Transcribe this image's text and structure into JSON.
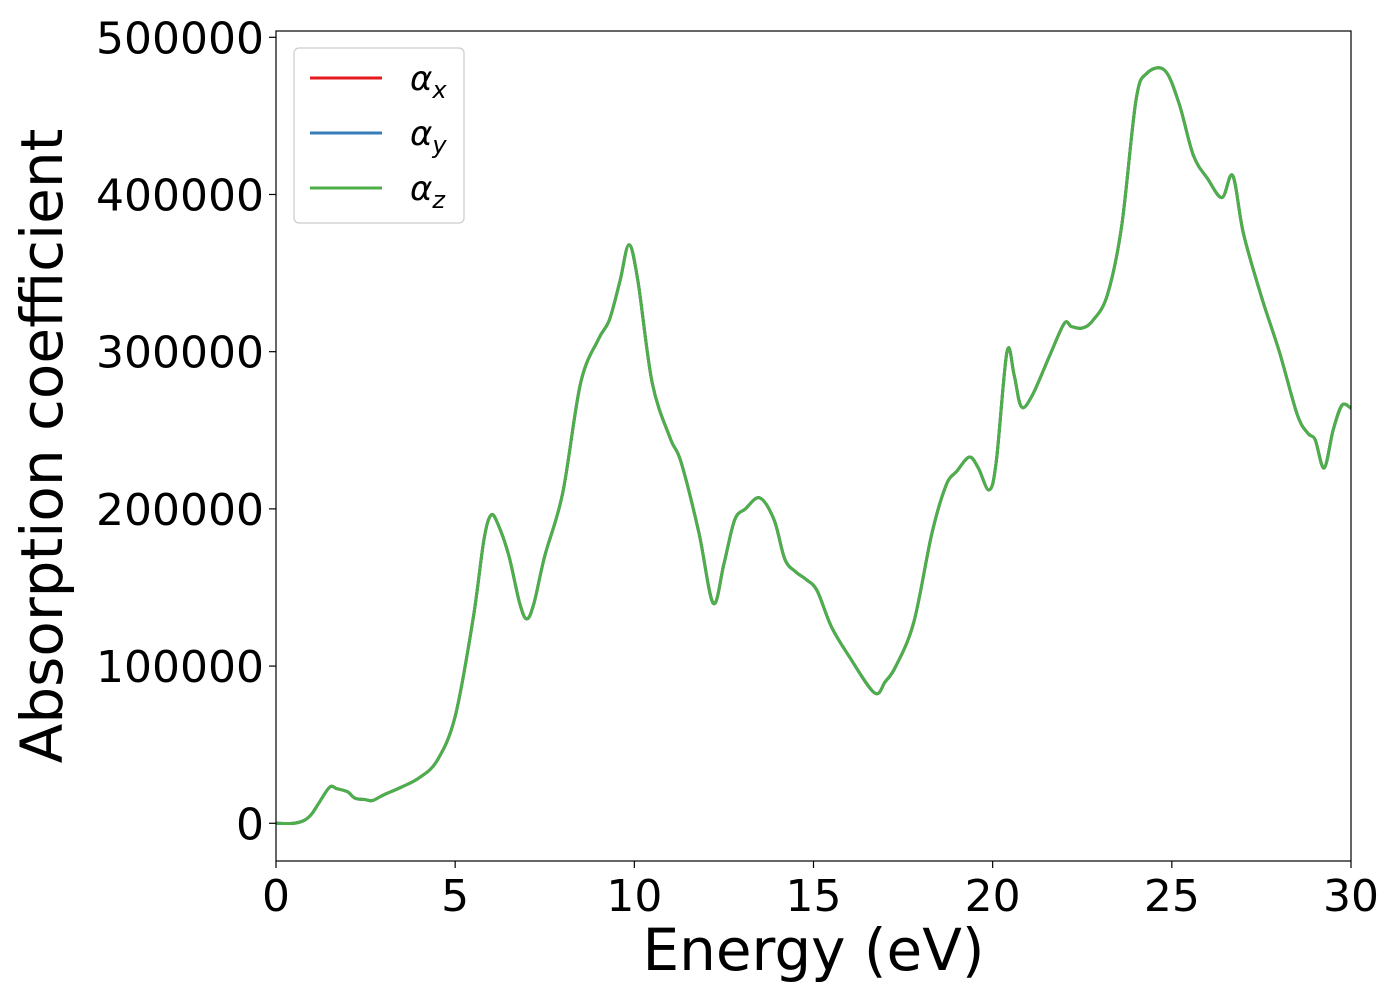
{
  "chart_data": {
    "type": "line",
    "title": "",
    "xlabel": "Energy (eV)",
    "ylabel": "Absorption coefficient",
    "xlim": [
      0,
      30
    ],
    "ylim": [
      -24000,
      504000
    ],
    "x_ticks": [
      0,
      5,
      10,
      15,
      20,
      25,
      30
    ],
    "x_tick_labels": [
      "0",
      "5",
      "10",
      "15",
      "20",
      "25",
      "30"
    ],
    "y_ticks": [
      0,
      100000,
      200000,
      300000,
      400000,
      500000
    ],
    "y_tick_labels": [
      "0",
      "100000",
      "200000",
      "300000",
      "400000",
      "500000"
    ],
    "grid": false,
    "legend_position": "top-left",
    "x": [
      0,
      0.5,
      0.8,
      1.0,
      1.2,
      1.5,
      1.7,
      2.0,
      2.2,
      2.5,
      2.7,
      3.0,
      3.5,
      4.0,
      4.5,
      5.0,
      5.5,
      5.8,
      6.0,
      6.2,
      6.5,
      6.8,
      7.0,
      7.2,
      7.5,
      8.0,
      8.5,
      9.0,
      9.3,
      9.6,
      9.85,
      10.1,
      10.5,
      11.0,
      11.3,
      11.8,
      12.2,
      12.5,
      12.8,
      13.1,
      13.5,
      13.9,
      14.2,
      14.5,
      14.8,
      15.1,
      15.5,
      16.0,
      16.7,
      17.0,
      17.3,
      17.8,
      18.3,
      18.7,
      19.0,
      19.35,
      19.6,
      19.9,
      20.1,
      20.4,
      20.6,
      20.8,
      21.1,
      21.6,
      22.0,
      22.2,
      22.5,
      22.8,
      23.2,
      23.6,
      24.0,
      24.3,
      24.8,
      25.2,
      25.6,
      26.0,
      26.4,
      26.7,
      27.0,
      27.5,
      28.0,
      28.5,
      28.8,
      29.0,
      29.25,
      29.5,
      29.75,
      30.0
    ],
    "series": [
      {
        "name": "α_x",
        "name_main": "α",
        "name_sub": "x",
        "color": "#e41a1c",
        "values": [
          0,
          0,
          2000,
          6000,
          13000,
          23000,
          22000,
          20000,
          16000,
          15000,
          14500,
          18000,
          23000,
          29000,
          40000,
          68000,
          130000,
          180000,
          196000,
          190000,
          170000,
          140000,
          130000,
          140000,
          170000,
          210000,
          280000,
          308000,
          320000,
          345000,
          368000,
          345000,
          280000,
          245000,
          230000,
          185000,
          140000,
          165000,
          193000,
          200000,
          207000,
          193000,
          168000,
          160000,
          155000,
          148000,
          125000,
          106000,
          83000,
          90000,
          100000,
          128000,
          184000,
          215000,
          224000,
          233000,
          226000,
          212000,
          230000,
          300000,
          285000,
          265000,
          272000,
          298000,
          318000,
          316000,
          315000,
          320000,
          336000,
          380000,
          460000,
          477000,
          479000,
          458000,
          425000,
          410000,
          398000,
          412000,
          375000,
          335000,
          300000,
          260000,
          248000,
          244000,
          226000,
          250000,
          266000,
          264000
        ]
      },
      {
        "name": "α_y",
        "name_main": "α",
        "name_sub": "y",
        "color": "#377eb8",
        "values": [
          0,
          0,
          2000,
          6000,
          13000,
          23000,
          22000,
          20000,
          16000,
          15000,
          14500,
          18000,
          23000,
          29000,
          40000,
          68000,
          130000,
          180000,
          196000,
          190000,
          170000,
          140000,
          130000,
          140000,
          170000,
          210000,
          280000,
          308000,
          320000,
          345000,
          368000,
          345000,
          280000,
          245000,
          230000,
          185000,
          140000,
          165000,
          193000,
          200000,
          207000,
          193000,
          168000,
          160000,
          155000,
          148000,
          125000,
          106000,
          83000,
          90000,
          100000,
          128000,
          184000,
          215000,
          224000,
          233000,
          226000,
          212000,
          230000,
          300000,
          285000,
          265000,
          272000,
          298000,
          318000,
          316000,
          315000,
          320000,
          336000,
          380000,
          460000,
          477000,
          479000,
          458000,
          425000,
          410000,
          398000,
          412000,
          375000,
          335000,
          300000,
          260000,
          248000,
          244000,
          226000,
          250000,
          266000,
          264000
        ]
      },
      {
        "name": "α_z",
        "name_main": "α",
        "name_sub": "z",
        "color": "#4daf4a",
        "values": [
          0,
          0,
          2000,
          6000,
          13000,
          23000,
          22000,
          20000,
          16000,
          15000,
          14500,
          18000,
          23000,
          29000,
          40000,
          68000,
          130000,
          180000,
          196000,
          190000,
          170000,
          140000,
          130000,
          140000,
          170000,
          210000,
          280000,
          308000,
          320000,
          345000,
          368000,
          345000,
          280000,
          245000,
          230000,
          185000,
          140000,
          165000,
          193000,
          200000,
          207000,
          193000,
          168000,
          160000,
          155000,
          148000,
          125000,
          106000,
          83000,
          90000,
          100000,
          128000,
          184000,
          215000,
          224000,
          233000,
          226000,
          212000,
          230000,
          300000,
          285000,
          265000,
          272000,
          298000,
          318000,
          316000,
          315000,
          320000,
          336000,
          380000,
          460000,
          477000,
          479000,
          458000,
          425000,
          410000,
          398000,
          412000,
          375000,
          335000,
          300000,
          260000,
          248000,
          244000,
          226000,
          250000,
          266000,
          264000
        ]
      }
    ]
  }
}
